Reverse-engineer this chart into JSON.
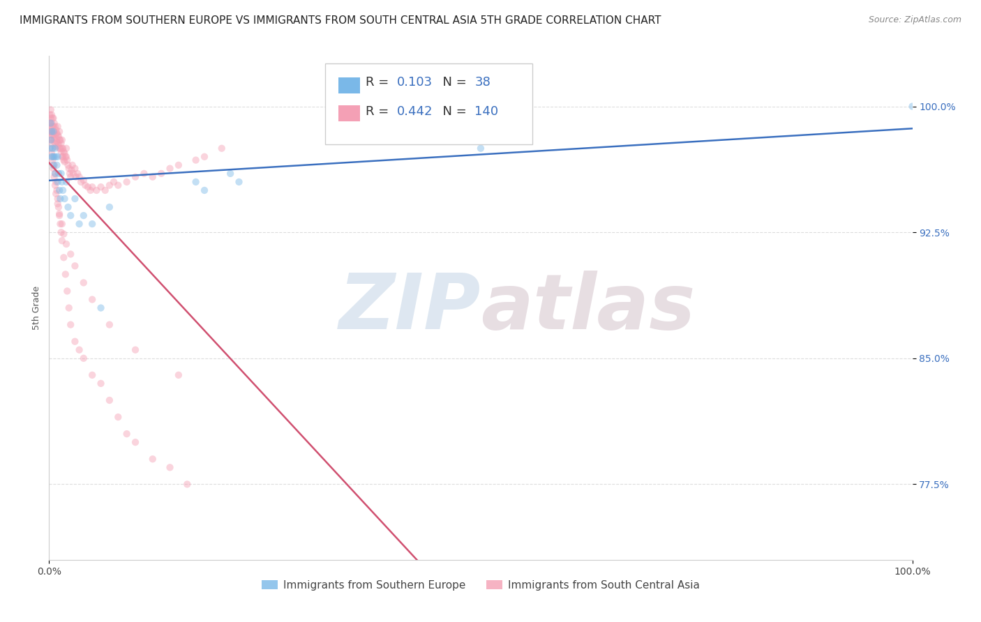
{
  "title": "IMMIGRANTS FROM SOUTHERN EUROPE VS IMMIGRANTS FROM SOUTH CENTRAL ASIA 5TH GRADE CORRELATION CHART",
  "source": "Source: ZipAtlas.com",
  "ylabel": "5th Grade",
  "xlim": [
    0.0,
    1.0
  ],
  "ylim": [
    0.73,
    1.03
  ],
  "yticks": [
    0.775,
    0.85,
    0.925,
    1.0
  ],
  "ytick_labels": [
    "77.5%",
    "85.0%",
    "92.5%",
    "100.0%"
  ],
  "xticks": [
    0.0,
    1.0
  ],
  "xtick_labels": [
    "0.0%",
    "100.0%"
  ],
  "series1_color": "#7ab8e8",
  "series1_label": "Immigrants from Southern Europe",
  "series1_R": 0.103,
  "series1_N": 38,
  "series2_color": "#f4a0b5",
  "series2_label": "Immigrants from South Central Asia",
  "series2_R": 0.442,
  "series2_N": 140,
  "watermark_zip": "ZIP",
  "watermark_atlas": "atlas",
  "background_color": "#ffffff",
  "grid_color": "#dddddd",
  "title_fontsize": 11,
  "axis_label_fontsize": 9,
  "tick_fontsize": 10,
  "scatter_size": 55,
  "scatter_alpha": 0.45,
  "line1_color": "#3a6fbf",
  "line2_color": "#d05070",
  "line_width": 1.8,
  "legend_R_N_color": "#3a6fbf",
  "ytick_color": "#3a6fbf",
  "series1_x": [
    0.001,
    0.002,
    0.002,
    0.003,
    0.003,
    0.004,
    0.004,
    0.005,
    0.005,
    0.006,
    0.007,
    0.007,
    0.008,
    0.009,
    0.01,
    0.01,
    0.011,
    0.012,
    0.013,
    0.014,
    0.015,
    0.016,
    0.018,
    0.02,
    0.022,
    0.025,
    0.03,
    0.035,
    0.04,
    0.05,
    0.06,
    0.07,
    0.17,
    0.18,
    0.21,
    0.22,
    0.5,
    1.0
  ],
  "series1_y": [
    0.975,
    0.98,
    0.99,
    0.97,
    0.985,
    0.975,
    0.97,
    0.985,
    0.965,
    0.97,
    0.975,
    0.96,
    0.97,
    0.965,
    0.97,
    0.955,
    0.96,
    0.95,
    0.945,
    0.96,
    0.955,
    0.95,
    0.945,
    0.955,
    0.94,
    0.935,
    0.945,
    0.93,
    0.935,
    0.93,
    0.88,
    0.94,
    0.955,
    0.95,
    0.96,
    0.955,
    0.975,
    1.0
  ],
  "series2_x": [
    0.001,
    0.001,
    0.001,
    0.002,
    0.002,
    0.002,
    0.002,
    0.003,
    0.003,
    0.003,
    0.003,
    0.004,
    0.004,
    0.004,
    0.005,
    0.005,
    0.005,
    0.006,
    0.006,
    0.006,
    0.007,
    0.007,
    0.007,
    0.008,
    0.008,
    0.008,
    0.009,
    0.009,
    0.01,
    0.01,
    0.01,
    0.011,
    0.011,
    0.012,
    0.012,
    0.012,
    0.013,
    0.013,
    0.014,
    0.014,
    0.015,
    0.015,
    0.015,
    0.016,
    0.016,
    0.017,
    0.017,
    0.018,
    0.018,
    0.019,
    0.02,
    0.02,
    0.021,
    0.022,
    0.023,
    0.024,
    0.025,
    0.026,
    0.027,
    0.028,
    0.03,
    0.031,
    0.033,
    0.035,
    0.037,
    0.04,
    0.042,
    0.045,
    0.048,
    0.05,
    0.055,
    0.06,
    0.065,
    0.07,
    0.075,
    0.08,
    0.09,
    0.1,
    0.11,
    0.12,
    0.13,
    0.14,
    0.15,
    0.17,
    0.18,
    0.2,
    0.001,
    0.002,
    0.003,
    0.004,
    0.005,
    0.006,
    0.007,
    0.008,
    0.009,
    0.01,
    0.011,
    0.012,
    0.013,
    0.014,
    0.015,
    0.017,
    0.019,
    0.021,
    0.023,
    0.025,
    0.03,
    0.035,
    0.04,
    0.05,
    0.06,
    0.07,
    0.08,
    0.09,
    0.1,
    0.12,
    0.14,
    0.16,
    0.001,
    0.002,
    0.003,
    0.004,
    0.005,
    0.006,
    0.007,
    0.008,
    0.01,
    0.012,
    0.015,
    0.017,
    0.02,
    0.025,
    0.03,
    0.04,
    0.05,
    0.07,
    0.1,
    0.15
  ],
  "series2_y": [
    0.995,
    0.99,
    0.985,
    0.998,
    0.993,
    0.988,
    0.983,
    0.995,
    0.99,
    0.985,
    0.98,
    0.993,
    0.988,
    0.983,
    0.993,
    0.988,
    0.983,
    0.99,
    0.985,
    0.98,
    0.988,
    0.983,
    0.978,
    0.986,
    0.981,
    0.976,
    0.984,
    0.979,
    0.988,
    0.983,
    0.978,
    0.982,
    0.977,
    0.985,
    0.98,
    0.975,
    0.98,
    0.975,
    0.978,
    0.973,
    0.98,
    0.975,
    0.97,
    0.975,
    0.97,
    0.973,
    0.968,
    0.972,
    0.967,
    0.97,
    0.975,
    0.97,
    0.968,
    0.965,
    0.963,
    0.96,
    0.958,
    0.962,
    0.965,
    0.96,
    0.963,
    0.958,
    0.96,
    0.958,
    0.955,
    0.956,
    0.953,
    0.952,
    0.95,
    0.952,
    0.95,
    0.952,
    0.95,
    0.953,
    0.955,
    0.953,
    0.955,
    0.958,
    0.96,
    0.958,
    0.96,
    0.963,
    0.965,
    0.968,
    0.97,
    0.975,
    0.99,
    0.985,
    0.98,
    0.975,
    0.97,
    0.965,
    0.96,
    0.955,
    0.95,
    0.945,
    0.94,
    0.935,
    0.93,
    0.925,
    0.92,
    0.91,
    0.9,
    0.89,
    0.88,
    0.87,
    0.86,
    0.855,
    0.85,
    0.84,
    0.835,
    0.825,
    0.815,
    0.805,
    0.8,
    0.79,
    0.785,
    0.775,
    0.985,
    0.978,
    0.972,
    0.968,
    0.963,
    0.958,
    0.953,
    0.948,
    0.942,
    0.936,
    0.93,
    0.924,
    0.918,
    0.912,
    0.905,
    0.895,
    0.885,
    0.87,
    0.855,
    0.84
  ]
}
